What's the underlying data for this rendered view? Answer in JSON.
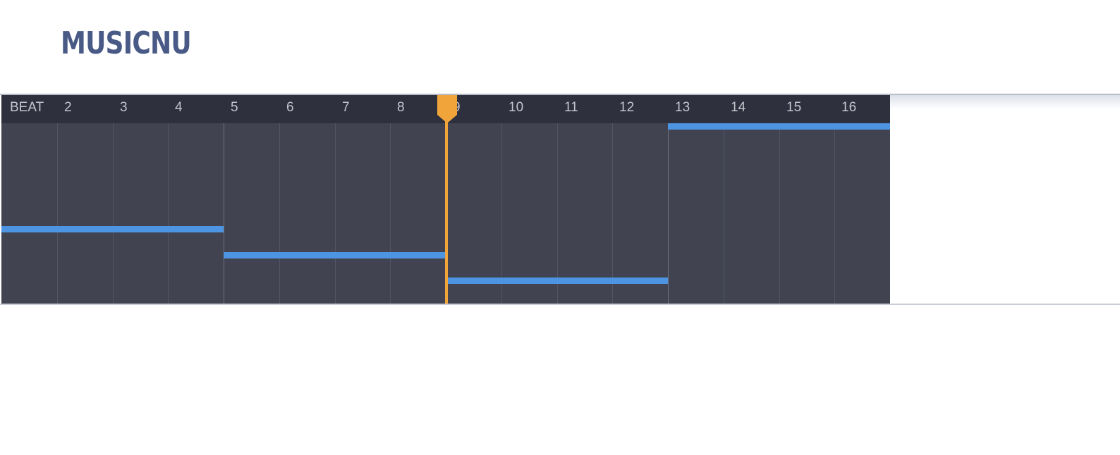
{
  "app": {
    "logo_text": "MUSICNU"
  },
  "sequencer": {
    "header_label": "BEAT",
    "beats": [
      "2",
      "3",
      "4",
      "5",
      "6",
      "7",
      "8",
      "9",
      "10",
      "11",
      "12",
      "13",
      "14",
      "15",
      "16"
    ],
    "total_beats": 16,
    "beats_per_bar": 4,
    "playhead_position_beats": 8,
    "notes": [
      {
        "start_beat": 1,
        "length_beats": 4,
        "lane": 6
      },
      {
        "start_beat": 5,
        "length_beats": 4,
        "lane": 7
      },
      {
        "start_beat": 9,
        "length_beats": 4,
        "lane": 8
      },
      {
        "start_beat": 13,
        "length_beats": 4,
        "lane": 2
      }
    ],
    "colors": {
      "background": "#414350",
      "header": "#2f303d",
      "note": "#4d94e2",
      "playhead": "#f0a43a",
      "label": "#c3c5cf"
    }
  }
}
